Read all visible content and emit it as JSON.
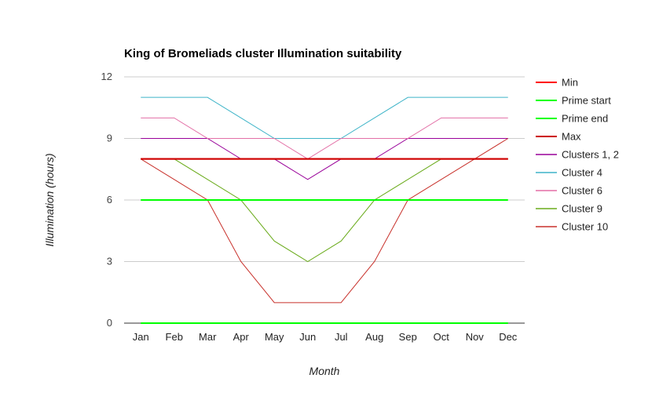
{
  "chart_data": {
    "type": "line",
    "title": "King of Bromeliads cluster Illumination suitability",
    "xlabel": "Month",
    "ylabel": "Illumination (hours)",
    "categories": [
      "Jan",
      "Feb",
      "Mar",
      "Apr",
      "May",
      "Jun",
      "Jul",
      "Aug",
      "Sep",
      "Oct",
      "Nov",
      "Dec"
    ],
    "ylim": [
      0,
      12
    ],
    "yticks": [
      0,
      3,
      6,
      9,
      12
    ],
    "grid": true,
    "legend_position": "right",
    "series": [
      {
        "name": "Min",
        "color": "#ff0000",
        "values": [
          8,
          8,
          8,
          8,
          8,
          8,
          8,
          8,
          8,
          8,
          8,
          8
        ]
      },
      {
        "name": "Prime start",
        "color": "#00ff00",
        "values": [
          6,
          6,
          6,
          6,
          6,
          6,
          6,
          6,
          6,
          6,
          6,
          6
        ]
      },
      {
        "name": "Prime end",
        "color": "#00ff00",
        "values": [
          0,
          0,
          0,
          0,
          0,
          0,
          0,
          0,
          0,
          0,
          0,
          0
        ]
      },
      {
        "name": "Max",
        "color": "#cc0000",
        "values": [
          8,
          8,
          8,
          8,
          8,
          8,
          8,
          8,
          8,
          8,
          8,
          8
        ]
      },
      {
        "name": "Clusters 1, 2",
        "color": "#990099",
        "values": [
          9,
          9,
          9,
          8,
          8,
          7,
          8,
          8,
          9,
          9,
          9,
          9
        ]
      },
      {
        "name": "Cluster 4",
        "color": "#3eb4c8",
        "values": [
          11,
          11,
          11,
          10,
          9,
          9,
          9,
          10,
          11,
          11,
          11,
          11
        ]
      },
      {
        "name": "Cluster 6",
        "color": "#e36fa6",
        "values": [
          10,
          10,
          9,
          9,
          9,
          8,
          9,
          9,
          9,
          10,
          10,
          10
        ]
      },
      {
        "name": "Cluster 9",
        "color": "#6aab1b",
        "values": [
          8,
          8,
          7,
          6,
          4,
          3,
          4,
          6,
          7,
          8,
          8,
          8
        ]
      },
      {
        "name": "Cluster 10",
        "color": "#c8312b",
        "values": [
          8,
          7,
          6,
          3,
          1,
          1,
          1,
          3,
          6,
          7,
          8,
          9
        ]
      }
    ]
  }
}
